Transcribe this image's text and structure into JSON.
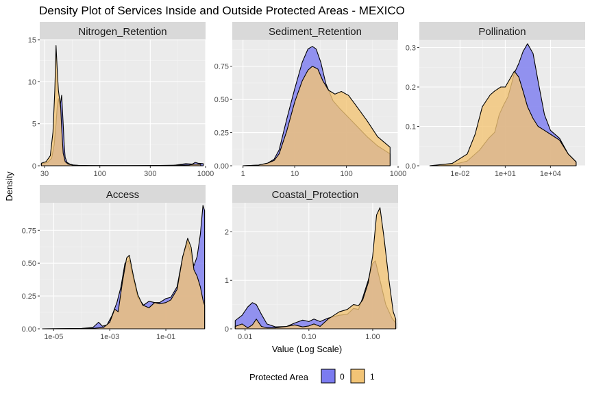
{
  "title": "Density Plot of Services Inside and Outside Protected Areas - MEXICO",
  "xlabel": "Value (Log Scale)",
  "ylabel": "Density",
  "legend": {
    "title": "Protected Area",
    "position": "bottom",
    "entries": [
      {
        "label": "0",
        "color": "#7b7bf0"
      },
      {
        "label": "1",
        "color": "#f2c476"
      }
    ]
  },
  "colors": {
    "series0_fill": "#7b7bf0",
    "series1_fill": "#f2c476",
    "overlap": "#b29089",
    "outline": "#000000"
  },
  "chart_data": [
    {
      "type": "area",
      "title": "Nitrogen_Retention",
      "xscale": "log10",
      "xlim": [
        27,
        1000
      ],
      "ylim": [
        0,
        15
      ],
      "xticks": [
        {
          "v": 30,
          "label": "30"
        },
        {
          "v": 100,
          "label": "100"
        },
        {
          "v": 300,
          "label": "300"
        },
        {
          "v": 1000,
          "label": "1000"
        }
      ],
      "yticks": [
        {
          "v": 0,
          "label": "0"
        },
        {
          "v": 5,
          "label": "5"
        },
        {
          "v": 10,
          "label": "10"
        },
        {
          "v": 15,
          "label": "15"
        }
      ],
      "series": [
        {
          "name": "0",
          "x": [
            28,
            32,
            35,
            37,
            38.5,
            39.5,
            40.5,
            42,
            43.5,
            45,
            46,
            47,
            49,
            52,
            56,
            62,
            80,
            200,
            500,
            650,
            750,
            800,
            850,
            950
          ],
          "y": [
            0.2,
            0.4,
            0.9,
            2.5,
            5.0,
            7.0,
            8.0,
            7.0,
            8.4,
            5.0,
            2.5,
            1.0,
            0.4,
            0.2,
            0.1,
            0.05,
            0.02,
            0.02,
            0.05,
            0.25,
            0.2,
            0.4,
            0.3,
            0.25
          ]
        },
        {
          "name": "1",
          "x": [
            28,
            31,
            34,
            36,
            37.5,
            38.5,
            39.5,
            40.5,
            41.5,
            42.5,
            43.5,
            45,
            47,
            50,
            55,
            65,
            100,
            300,
            700,
            800,
            900
          ],
          "y": [
            0.3,
            0.5,
            1.2,
            4.0,
            9.0,
            14.3,
            11.5,
            9.0,
            8.0,
            7.2,
            4.5,
            1.5,
            0.5,
            0.2,
            0.08,
            0.03,
            0.02,
            0.02,
            0.1,
            0.2,
            0.15
          ]
        }
      ]
    },
    {
      "type": "area",
      "title": "Sediment_Retention",
      "xscale": "log10",
      "xlim": [
        0.62,
        1000
      ],
      "ylim": [
        0,
        0.95
      ],
      "xticks": [
        {
          "v": 1,
          "label": "1"
        },
        {
          "v": 10,
          "label": "10"
        },
        {
          "v": 100,
          "label": "100"
        },
        {
          "v": 1000,
          "label": "1000"
        }
      ],
      "yticks": [
        {
          "v": 0,
          "label": "0.00"
        },
        {
          "v": 0.25,
          "label": "0.25"
        },
        {
          "v": 0.5,
          "label": "0.50"
        },
        {
          "v": 0.75,
          "label": "0.75"
        }
      ],
      "series": [
        {
          "name": "0",
          "x": [
            1,
            2,
            3,
            4,
            5,
            7,
            10,
            14,
            18,
            22,
            26,
            32,
            40,
            55,
            75,
            100,
            150,
            250,
            400,
            700
          ],
          "y": [
            0.0,
            0.005,
            0.02,
            0.05,
            0.12,
            0.35,
            0.58,
            0.78,
            0.88,
            0.9,
            0.88,
            0.78,
            0.62,
            0.49,
            0.43,
            0.38,
            0.31,
            0.22,
            0.15,
            0.09
          ]
        },
        {
          "name": "1",
          "x": [
            1,
            2,
            3,
            4,
            5,
            7,
            10,
            14,
            18,
            22,
            28,
            35,
            45,
            60,
            80,
            110,
            150,
            250,
            400,
            700
          ],
          "y": [
            0.0,
            0.005,
            0.02,
            0.04,
            0.09,
            0.26,
            0.48,
            0.64,
            0.72,
            0.75,
            0.73,
            0.64,
            0.57,
            0.54,
            0.56,
            0.53,
            0.46,
            0.34,
            0.22,
            0.14
          ]
        }
      ]
    },
    {
      "type": "area",
      "title": "Pollination",
      "xscale": "log10",
      "xlim": [
        2e-05,
        2000000.0
      ],
      "ylim": [
        0,
        0.32
      ],
      "xticks": [
        {
          "v": 0.01,
          "label": "1e-02"
        },
        {
          "v": 10,
          "label": "1e+01"
        },
        {
          "v": 10000,
          "label": "1e+04"
        }
      ],
      "yticks": [
        {
          "v": 0,
          "label": "0.0"
        },
        {
          "v": 0.1,
          "label": "0.1"
        },
        {
          "v": 0.2,
          "label": "0.2"
        },
        {
          "v": 0.3,
          "label": "0.3"
        }
      ],
      "series": [
        {
          "name": "0",
          "x": [
            0.0001,
            0.003,
            0.03,
            0.2,
            0.8,
            2,
            4,
            8,
            15,
            25,
            40,
            80,
            150,
            300,
            700,
            1500,
            4000,
            10000,
            40000,
            150000,
            500000
          ],
          "y": [
            0.0,
            0.002,
            0.012,
            0.04,
            0.07,
            0.085,
            0.13,
            0.155,
            0.175,
            0.205,
            0.235,
            0.26,
            0.29,
            0.31,
            0.285,
            0.215,
            0.13,
            0.09,
            0.07,
            0.03,
            0.01
          ]
        },
        {
          "name": "1",
          "x": [
            0.0001,
            0.003,
            0.03,
            0.1,
            0.3,
            1,
            2,
            5,
            10,
            20,
            40,
            80,
            150,
            300,
            700,
            1500,
            4000,
            10000,
            40000,
            150000,
            500000
          ],
          "y": [
            0.0,
            0.006,
            0.03,
            0.08,
            0.15,
            0.18,
            0.19,
            0.2,
            0.2,
            0.22,
            0.24,
            0.225,
            0.19,
            0.15,
            0.12,
            0.1,
            0.09,
            0.08,
            0.065,
            0.03,
            0.01
          ]
        }
      ]
    },
    {
      "type": "area",
      "title": "Access",
      "xscale": "log10",
      "xlim": [
        3.2e-06,
        2.6
      ],
      "ylim": [
        0,
        0.96
      ],
      "xticks": [
        {
          "v": 1e-05,
          "label": "1e-05"
        },
        {
          "v": 0.001,
          "label": "1e-03"
        },
        {
          "v": 0.1,
          "label": "1e-01"
        }
      ],
      "yticks": [
        {
          "v": 0,
          "label": "0.00"
        },
        {
          "v": 0.25,
          "label": "0.25"
        },
        {
          "v": 0.5,
          "label": "0.50"
        },
        {
          "v": 0.75,
          "label": "0.75"
        }
      ],
      "series": [
        {
          "name": "0",
          "x": [
            4e-06,
            0.0001,
            0.00025,
            0.0004,
            0.00055,
            0.0008,
            0.0012,
            0.0018,
            0.0025,
            0.0035,
            0.005,
            0.007,
            0.01,
            0.016,
            0.025,
            0.04,
            0.06,
            0.1,
            0.15,
            0.25,
            0.4,
            0.6,
            0.8,
            1.0,
            1.3,
            1.7,
            2.1,
            2.4
          ],
          "y": [
            0.0,
            0.003,
            0.01,
            0.05,
            0.02,
            0.03,
            0.1,
            0.2,
            0.32,
            0.5,
            0.52,
            0.38,
            0.24,
            0.18,
            0.21,
            0.2,
            0.2,
            0.23,
            0.24,
            0.32,
            0.55,
            0.66,
            0.56,
            0.48,
            0.55,
            0.72,
            0.94,
            0.9
          ]
        },
        {
          "name": "1",
          "x": [
            4e-06,
            0.0001,
            0.0003,
            0.0006,
            0.001,
            0.0015,
            0.002,
            0.0028,
            0.004,
            0.005,
            0.007,
            0.01,
            0.015,
            0.025,
            0.04,
            0.06,
            0.1,
            0.15,
            0.25,
            0.4,
            0.6,
            0.8,
            1.0,
            1.3,
            1.7,
            2.1,
            2.4
          ],
          "y": [
            0.0,
            0.002,
            0.005,
            0.01,
            0.05,
            0.15,
            0.13,
            0.35,
            0.54,
            0.56,
            0.4,
            0.26,
            0.18,
            0.16,
            0.2,
            0.19,
            0.2,
            0.22,
            0.3,
            0.55,
            0.69,
            0.62,
            0.45,
            0.4,
            0.32,
            0.22,
            0.18
          ]
        }
      ]
    },
    {
      "type": "area",
      "title": "Coastal_Protection",
      "xscale": "log10",
      "xlim": [
        0.0063,
        2.5
      ],
      "ylim": [
        0,
        2.6
      ],
      "xticks": [
        {
          "v": 0.01,
          "label": "0.01"
        },
        {
          "v": 0.1,
          "label": "0.10"
        },
        {
          "v": 1,
          "label": "1.00"
        }
      ],
      "yticks": [
        {
          "v": 0,
          "label": "0"
        },
        {
          "v": 1,
          "label": "1"
        },
        {
          "v": 2,
          "label": "2"
        }
      ],
      "series": [
        {
          "name": "0",
          "x": [
            0.007,
            0.009,
            0.011,
            0.013,
            0.015,
            0.018,
            0.022,
            0.03,
            0.045,
            0.06,
            0.08,
            0.1,
            0.12,
            0.15,
            0.2,
            0.3,
            0.4,
            0.5,
            0.6,
            0.7,
            0.85,
            1.0,
            1.1,
            1.3,
            1.6,
            2.0,
            2.3
          ],
          "y": [
            0.17,
            0.28,
            0.45,
            0.54,
            0.5,
            0.3,
            0.1,
            0.04,
            0.05,
            0.12,
            0.18,
            0.15,
            0.2,
            0.15,
            0.22,
            0.28,
            0.3,
            0.42,
            0.4,
            0.65,
            1.0,
            1.35,
            1.4,
            1.0,
            0.5,
            0.22,
            0.12
          ]
        },
        {
          "name": "1",
          "x": [
            0.007,
            0.009,
            0.011,
            0.013,
            0.015,
            0.018,
            0.022,
            0.03,
            0.045,
            0.06,
            0.08,
            0.1,
            0.12,
            0.15,
            0.2,
            0.3,
            0.4,
            0.5,
            0.6,
            0.7,
            0.85,
            1.0,
            1.15,
            1.3,
            1.5,
            1.8,
            2.1,
            2.3
          ],
          "y": [
            0.05,
            0.1,
            0.02,
            0.08,
            0.2,
            0.05,
            0.02,
            0.02,
            0.05,
            0.08,
            0.04,
            0.06,
            0.1,
            0.05,
            0.2,
            0.35,
            0.4,
            0.5,
            0.48,
            0.6,
            0.95,
            1.5,
            2.35,
            2.5,
            1.9,
            1.0,
            0.35,
            0.2
          ]
        }
      ]
    }
  ]
}
